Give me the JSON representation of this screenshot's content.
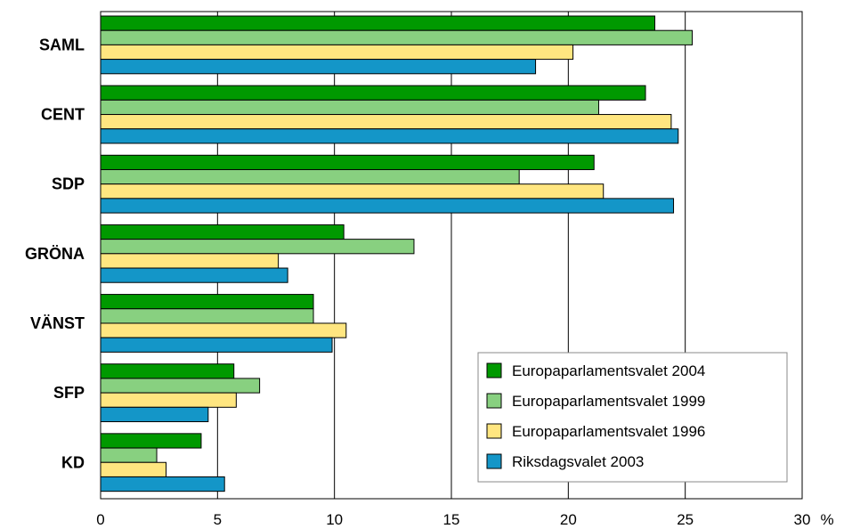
{
  "chart_data": {
    "type": "bar",
    "orientation": "horizontal",
    "title": "",
    "xlabel": "",
    "ylabel": "",
    "unit": "%",
    "categories": [
      "SAML",
      "CENT",
      "SDP",
      "GRÖNA",
      "VÄNST",
      "SFP",
      "KD"
    ],
    "series": [
      {
        "name": "Europaparlamentsvalet 2004",
        "color": "#009900",
        "values": [
          23.7,
          23.3,
          21.1,
          10.4,
          9.1,
          5.7,
          4.3
        ]
      },
      {
        "name": "Europaparlamentsvalet 1999",
        "color": "#88d080",
        "values": [
          25.3,
          21.3,
          17.9,
          13.4,
          9.1,
          6.8,
          2.4
        ]
      },
      {
        "name": "Europaparlamentsvalet 1996",
        "color": "#ffe680",
        "values": [
          20.2,
          24.4,
          21.5,
          7.6,
          10.5,
          5.8,
          2.8
        ]
      },
      {
        "name": "Riksdagsvalet 2003",
        "color": "#1496c8",
        "values": [
          18.6,
          24.7,
          24.5,
          8.0,
          9.9,
          4.6,
          5.3
        ]
      }
    ],
    "xlim": [
      0,
      30
    ],
    "xticks": [
      0,
      5,
      10,
      15,
      20,
      25,
      30
    ],
    "grid": true,
    "legend_position": "bottom-right"
  }
}
